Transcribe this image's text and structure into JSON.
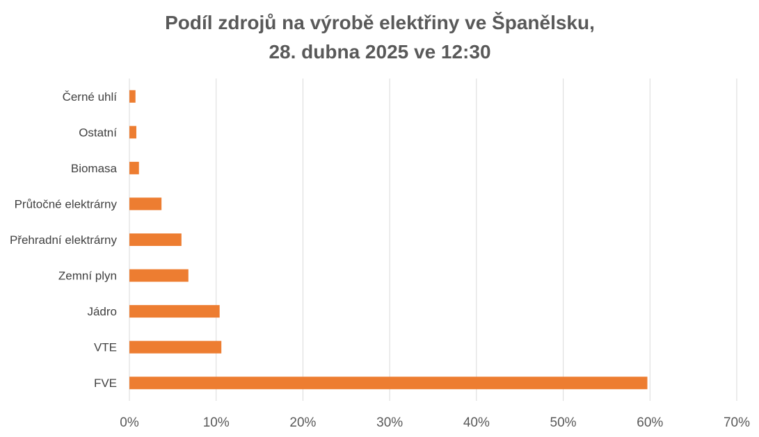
{
  "chart_data": {
    "type": "bar",
    "orientation": "horizontal",
    "title_lines": [
      "Podíl zdrojů na výrobě elektřiny ve Španělsku,",
      "28. dubna 2025 ve 12:30"
    ],
    "categories": [
      "Černé uhlí",
      "Ostatní",
      "Biomasa",
      "Průtočné elektrárny",
      "Přehradní elektrárny",
      "Zemní plyn",
      "Jádro",
      "VTE",
      "FVE"
    ],
    "values": [
      0.7,
      0.8,
      1.1,
      3.7,
      6.0,
      6.8,
      10.4,
      10.6,
      59.7
    ],
    "x_ticks": [
      "0%",
      "10%",
      "20%",
      "30%",
      "40%",
      "50%",
      "60%",
      "70%"
    ],
    "xlim": [
      0,
      70
    ],
    "grid": true,
    "bar_color": "#ED7D31"
  }
}
